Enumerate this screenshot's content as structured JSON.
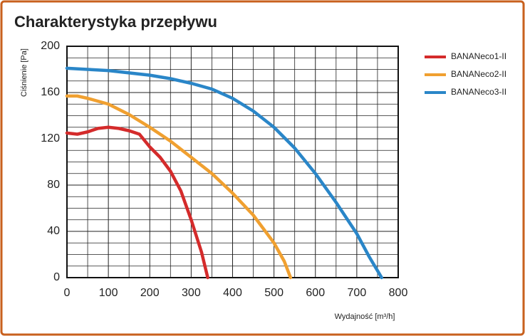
{
  "chart_data": {
    "type": "line",
    "title": "Charakterystyka przepływu",
    "x_label": "Wydajność [m³/h]",
    "y_label": "Ciśnienie [Pa]",
    "xlim": [
      0,
      800
    ],
    "xticks": [
      0,
      100,
      200,
      300,
      400,
      500,
      600,
      700,
      800
    ],
    "ylim": [
      0,
      200
    ],
    "yticks": [
      0,
      40,
      80,
      120,
      160,
      200
    ],
    "grid": true,
    "legend": "right",
    "series": [
      {
        "name": "BANANeco1-II",
        "color": "#d42b2b",
        "x": [
          0,
          25,
          50,
          75,
          100,
          125,
          150,
          175,
          200,
          225,
          250,
          275,
          300,
          325,
          340
        ],
        "values": [
          125,
          124,
          126,
          129,
          130,
          129,
          127,
          124,
          113,
          104,
          92,
          75,
          50,
          22,
          0
        ]
      },
      {
        "name": "BANANeco2-II",
        "color": "#f0a030",
        "x": [
          0,
          25,
          50,
          100,
          150,
          200,
          250,
          300,
          350,
          400,
          450,
          500,
          525,
          540
        ],
        "values": [
          157,
          157,
          155,
          150,
          141,
          130,
          118,
          104,
          90,
          73,
          54,
          30,
          14,
          0
        ]
      },
      {
        "name": "BANANeco3-II",
        "color": "#2a86c8",
        "x": [
          0,
          50,
          100,
          150,
          200,
          250,
          300,
          350,
          400,
          450,
          500,
          550,
          600,
          650,
          700,
          730,
          760
        ],
        "values": [
          181,
          180,
          179,
          177,
          175,
          172,
          168,
          163,
          155,
          144,
          130,
          112,
          90,
          65,
          38,
          18,
          0
        ]
      }
    ]
  }
}
